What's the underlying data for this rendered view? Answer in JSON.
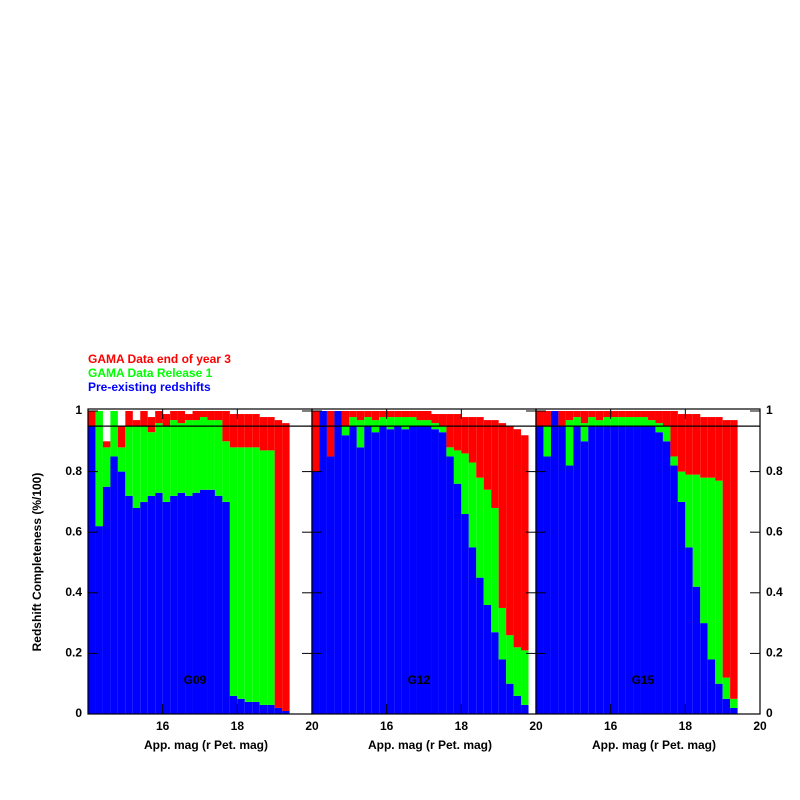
{
  "chart_data": {
    "type": "stacked-histogram",
    "xlabel": "App. mag (r Pet. mag)",
    "ylabel": "Redshift Completeness (%/100)",
    "xlim": [
      14,
      20
    ],
    "xticks": [
      16,
      18,
      20
    ],
    "ylim": [
      0,
      1
    ],
    "yticks": [
      0,
      0.2,
      0.4,
      0.6,
      0.8,
      1
    ],
    "hline": 0.95,
    "bins": [
      14.0,
      14.2,
      14.4,
      14.6,
      14.8,
      15.0,
      15.2,
      15.4,
      15.6,
      15.8,
      16.0,
      16.2,
      16.4,
      16.6,
      16.8,
      17.0,
      17.2,
      17.4,
      17.6,
      17.8,
      18.0,
      18.2,
      18.4,
      18.6,
      18.8,
      19.0,
      19.2,
      19.4,
      19.6,
      19.8
    ],
    "series": [
      {
        "name": "Pre-existing redshifts",
        "color": "#0000ff"
      },
      {
        "name": "GAMA Data Release 1",
        "color": "#00ff00"
      },
      {
        "name": "GAMA Data end of year 3",
        "color": "#ff0000"
      }
    ],
    "panels": [
      {
        "label": "G09",
        "series": [
          {
            "values": [
              0.95,
              0.62,
              0.75,
              0.85,
              0.8,
              0.72,
              0.68,
              0.7,
              0.72,
              0.73,
              0.7,
              0.72,
              0.73,
              0.72,
              0.73,
              0.74,
              0.74,
              0.72,
              0.7,
              0.06,
              0.05,
              0.04,
              0.04,
              0.03,
              0.03,
              0.02,
              0.01,
              0,
              0
            ]
          },
          {
            "values": [
              0,
              0.38,
              0.13,
              0.15,
              0.08,
              0.23,
              0.27,
              0.25,
              0.21,
              0.23,
              0.25,
              0.25,
              0.23,
              0.25,
              0.24,
              0.24,
              0.23,
              0.25,
              0.2,
              0.82,
              0.83,
              0.84,
              0.84,
              0.84,
              0.84,
              0,
              0,
              0,
              0
            ]
          },
          {
            "values": [
              0.05,
              0,
              0.02,
              0,
              0.07,
              0.05,
              0.02,
              0.05,
              0.05,
              0.04,
              0.04,
              0.03,
              0.04,
              0.02,
              0.03,
              0.02,
              0.03,
              0.03,
              0.1,
              0.11,
              0.11,
              0.11,
              0.11,
              0.11,
              0.11,
              0.95,
              0.95,
              0,
              0
            ]
          }
        ]
      },
      {
        "label": "G12",
        "series": [
          {
            "values": [
              0.8,
              1.0,
              0.85,
              1.0,
              0.92,
              0.95,
              0.88,
              0.95,
              0.93,
              0.95,
              0.94,
              0.95,
              0.94,
              0.95,
              0.95,
              0.95,
              0.94,
              0.93,
              0.85,
              0.76,
              0.66,
              0.55,
              0.45,
              0.36,
              0.27,
              0.18,
              0.1,
              0.06,
              0.03
            ]
          },
          {
            "values": [
              0,
              0,
              0,
              0,
              0.03,
              0.03,
              0.09,
              0.03,
              0.04,
              0.03,
              0.04,
              0.03,
              0.04,
              0.03,
              0.02,
              0.02,
              0.02,
              0.02,
              0.03,
              0.11,
              0.2,
              0.28,
              0.33,
              0.38,
              0.41,
              0.17,
              0.16,
              0.16,
              0.18
            ]
          },
          {
            "values": [
              0.2,
              0,
              0.15,
              0,
              0.05,
              0.02,
              0.03,
              0.02,
              0.03,
              0.02,
              0.02,
              0.02,
              0.02,
              0.02,
              0.03,
              0.03,
              0.03,
              0.04,
              0.11,
              0.12,
              0.12,
              0.15,
              0.2,
              0.23,
              0.29,
              0.61,
              0.69,
              0.72,
              0.71
            ]
          }
        ]
      },
      {
        "label": "G15",
        "series": [
          {
            "values": [
              0.95,
              0.85,
              1.0,
              0.95,
              0.82,
              0.95,
              0.9,
              0.95,
              0.95,
              0.95,
              0.95,
              0.95,
              0.95,
              0.95,
              0.95,
              0.95,
              0.93,
              0.9,
              0.82,
              0.7,
              0.55,
              0.42,
              0.3,
              0.18,
              0.1,
              0.05,
              0.02,
              0,
              0
            ]
          },
          {
            "values": [
              0,
              0.1,
              0,
              0,
              0.15,
              0.03,
              0.06,
              0.03,
              0.02,
              0.03,
              0.03,
              0.03,
              0.03,
              0.03,
              0.03,
              0.02,
              0.03,
              0.05,
              0.03,
              0.1,
              0.24,
              0.37,
              0.48,
              0.6,
              0.67,
              0.07,
              0.03,
              0,
              0
            ]
          },
          {
            "values": [
              0.05,
              0.05,
              0,
              0.05,
              0.03,
              0.02,
              0.04,
              0.02,
              0.03,
              0.02,
              0.02,
              0.02,
              0.02,
              0.02,
              0.02,
              0.03,
              0.04,
              0.05,
              0.15,
              0.19,
              0.2,
              0.2,
              0.2,
              0.2,
              0.21,
              0.85,
              0.92,
              0,
              0
            ]
          }
        ]
      }
    ]
  }
}
